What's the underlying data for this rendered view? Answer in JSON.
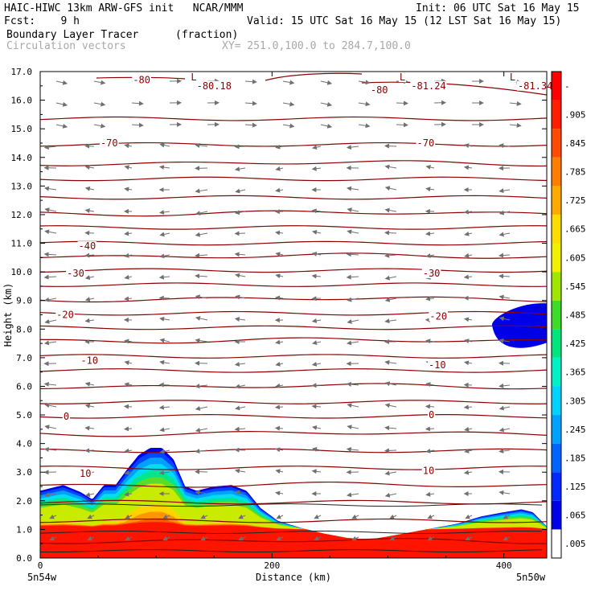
{
  "header": {
    "line1_left": "HAIC-HIWC 13km ARW-GFS init   NCAR/MMM",
    "line1_right": "Init: 06 UTC Sat 16 May 15",
    "line2_left": "Fcst:    9 h",
    "line2_right": "Valid: 15 UTC Sat 16 May 15 (12 LST Sat 16 May 15)",
    "field_name": "Boundary Layer Tracer",
    "field_units": "(fraction)",
    "vector_name": "Circulation vectors",
    "xy_range": "XY= 251.0,100.0 to 284.7,100.0"
  },
  "chart_data": {
    "type": "cross-section",
    "title": "Boundary Layer Tracer",
    "units": "(fraction)",
    "xlabel": "Distance (km)",
    "ylabel": "Height (km)",
    "xlim": [
      0,
      437
    ],
    "ylim": [
      0,
      17
    ],
    "x_ticks": [
      {
        "value": 0,
        "label": "0"
      },
      {
        "value": 200,
        "label": "200"
      },
      {
        "value": 400,
        "label": "400"
      }
    ],
    "x_endpoint_labels": {
      "left": "5n54w",
      "right": "5n50w"
    },
    "y_ticks": [
      "0.0",
      "1.0",
      "2.0",
      "3.0",
      "4.0",
      "5.0",
      "6.0",
      "7.0",
      "8.0",
      "9.0",
      "10.0",
      "11.0",
      "12.0",
      "13.0",
      "14.0",
      "15.0",
      "16.0",
      "17.0"
    ],
    "colorbar": {
      "labels": [
        ".005",
        ".065",
        ".125",
        ".185",
        ".245",
        ".305",
        ".365",
        ".425",
        ".485",
        ".545",
        ".605",
        ".665",
        ".725",
        ".785",
        ".845",
        ".905",
        "-"
      ],
      "colors": [
        "#ffffff",
        "#0000e6",
        "#0028ff",
        "#0064ff",
        "#00a0ff",
        "#00d2ff",
        "#00f0c8",
        "#00e67d",
        "#3cdc28",
        "#a0e600",
        "#f0f000",
        "#ffdc00",
        "#ffaa00",
        "#ff7d00",
        "#ff4b00",
        "#ff1e00",
        "#ff0000"
      ]
    },
    "tracer_top_profile": [
      [
        0,
        2.35
      ],
      [
        10,
        2.45
      ],
      [
        20,
        2.55
      ],
      [
        35,
        2.3
      ],
      [
        45,
        2.05
      ],
      [
        55,
        2.55
      ],
      [
        65,
        2.55
      ],
      [
        75,
        3.1
      ],
      [
        85,
        3.6
      ],
      [
        95,
        3.85
      ],
      [
        105,
        3.85
      ],
      [
        115,
        3.45
      ],
      [
        125,
        2.5
      ],
      [
        135,
        2.35
      ],
      [
        150,
        2.5
      ],
      [
        165,
        2.55
      ],
      [
        178,
        2.35
      ],
      [
        190,
        1.75
      ],
      [
        205,
        1.3
      ],
      [
        225,
        1.05
      ],
      [
        245,
        0.85
      ],
      [
        265,
        0.7
      ],
      [
        285,
        0.65
      ],
      [
        300,
        0.75
      ],
      [
        320,
        0.9
      ],
      [
        340,
        1.05
      ],
      [
        360,
        1.2
      ],
      [
        380,
        1.45
      ],
      [
        400,
        1.6
      ],
      [
        415,
        1.7
      ],
      [
        425,
        1.6
      ],
      [
        437,
        1.1
      ]
    ],
    "upper_blob": {
      "x_range": [
        390,
        437
      ],
      "z_range": [
        7.3,
        8.9
      ],
      "value": 0.065
    },
    "isotherm_labels": [
      {
        "label": "-80",
        "x": 80,
        "z": 16.7
      },
      {
        "label": "-80",
        "x": 285,
        "z": 16.35
      },
      {
        "label": "-80.18",
        "x": 135,
        "z": 16.5
      },
      {
        "label": "-81.24",
        "x": 320,
        "z": 16.5
      },
      {
        "label": "-81.34",
        "x": 412,
        "z": 16.5
      },
      {
        "label": "L",
        "x": 130,
        "z": 16.8
      },
      {
        "label": "L",
        "x": 310,
        "z": 16.8
      },
      {
        "label": "L",
        "x": 405,
        "z": 16.8
      },
      {
        "label": "-70",
        "x": 52,
        "z": 14.5
      },
      {
        "label": "-70",
        "x": 325,
        "z": 14.5
      },
      {
        "label": "-40",
        "x": 33,
        "z": 10.9
      },
      {
        "label": "-30",
        "x": 23,
        "z": 9.95
      },
      {
        "label": "-30",
        "x": 330,
        "z": 9.95
      },
      {
        "label": "-20",
        "x": 14,
        "z": 8.5
      },
      {
        "label": "-20",
        "x": 336,
        "z": 8.45
      },
      {
        "label": "-10",
        "x": 35,
        "z": 6.9
      },
      {
        "label": "-10",
        "x": 335,
        "z": 6.75
      },
      {
        "label": "0",
        "x": 20,
        "z": 4.95
      },
      {
        "label": "0",
        "x": 335,
        "z": 5.0
      },
      {
        "label": "10",
        "x": 34,
        "z": 2.95
      },
      {
        "label": "10",
        "x": 330,
        "z": 3.05
      }
    ]
  }
}
